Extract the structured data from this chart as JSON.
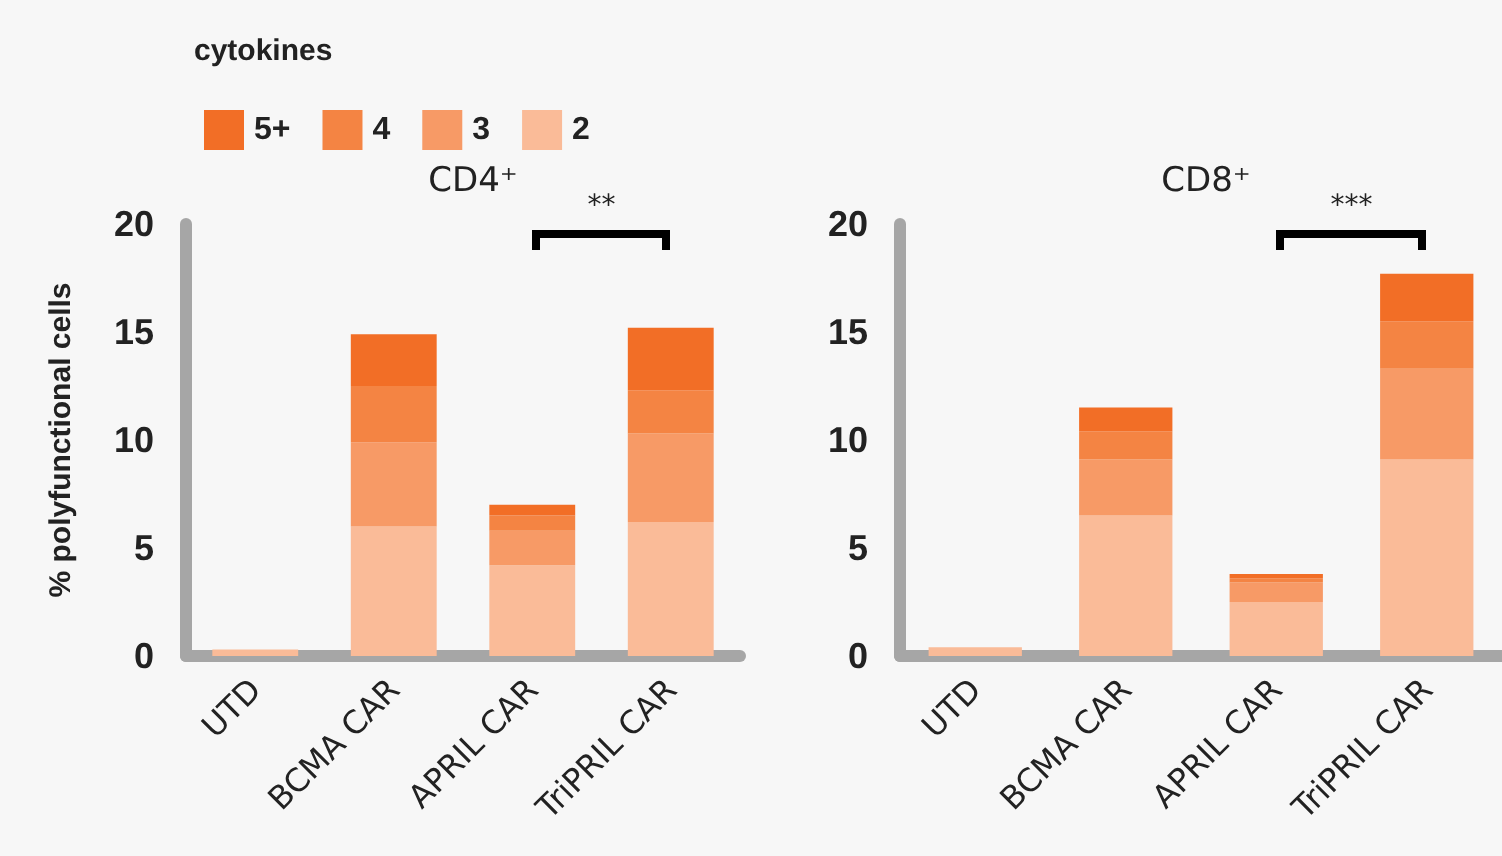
{
  "chart_data": [
    {
      "type": "bar",
      "title": "CD4⁺",
      "ylabel": "% polyfunctional cells",
      "legend_title": "cytokines",
      "legend": "top left",
      "stacked": true,
      "categories": [
        "UTD",
        "BCMA CAR",
        "APRIL CAR",
        "TriPRIL CAR"
      ],
      "series": [
        {
          "name": "2",
          "color": "#fabb98",
          "values": [
            0.3,
            6.0,
            4.2,
            6.2
          ]
        },
        {
          "name": "3",
          "color": "#f79a66",
          "values": [
            0,
            3.9,
            1.6,
            4.1
          ]
        },
        {
          "name": "4",
          "color": "#f48443",
          "values": [
            0,
            2.6,
            0.7,
            2.0
          ]
        },
        {
          "name": "5+",
          "color": "#f26e26",
          "values": [
            0,
            2.4,
            0.5,
            2.9
          ]
        }
      ],
      "ylim": [
        0,
        20
      ],
      "yticks": [
        0,
        5,
        10,
        15,
        20
      ],
      "grid": false,
      "annotations": [
        "**"
      ]
    },
    {
      "type": "bar",
      "title": "CD8⁺",
      "stacked": true,
      "legend": false,
      "categories": [
        "UTD",
        "BCMA CAR",
        "APRIL CAR",
        "TriPRIL CAR"
      ],
      "series": [
        {
          "color": "#fabb98",
          "values": [
            0.4,
            6.5,
            2.5,
            9.1
          ]
        },
        {
          "color": "#f79a66",
          "values": [
            0,
            2.6,
            0.9,
            4.2
          ]
        },
        {
          "color": "#f48443",
          "values": [
            0,
            1.3,
            0.2,
            2.2
          ]
        },
        {
          "color": "#f26e26",
          "values": [
            0,
            1.1,
            0.2,
            2.2
          ]
        }
      ],
      "ylim": [
        0,
        20
      ],
      "yticks": [
        0,
        5,
        10,
        15,
        20
      ],
      "grid": false,
      "annotations": [
        "***"
      ]
    }
  ]
}
